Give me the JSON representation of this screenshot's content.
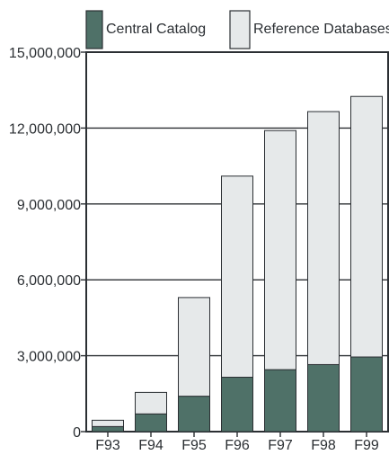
{
  "chart_data": {
    "type": "bar",
    "stacked": true,
    "categories": [
      "F93",
      "F94",
      "F95",
      "F96",
      "F97",
      "F98",
      "F99"
    ],
    "series": [
      {
        "name": "Central Catalog",
        "values": [
          200000,
          700000,
          1400000,
          2150000,
          2450000,
          2650000,
          2950000
        ],
        "color": "#4f7168"
      },
      {
        "name": "Reference Databases",
        "values": [
          250000,
          850000,
          3900000,
          7950000,
          9450000,
          10000000,
          10300000
        ],
        "color": "#e6e9ea"
      }
    ],
    "title": "",
    "xlabel": "",
    "ylabel": "",
    "ylim": [
      0,
      15000000
    ],
    "yticks": [
      "0",
      "3,000,000",
      "6,000,000",
      "9,000,000",
      "12,000,000",
      "15,000,000"
    ],
    "grid": true,
    "legend_position": "top"
  }
}
